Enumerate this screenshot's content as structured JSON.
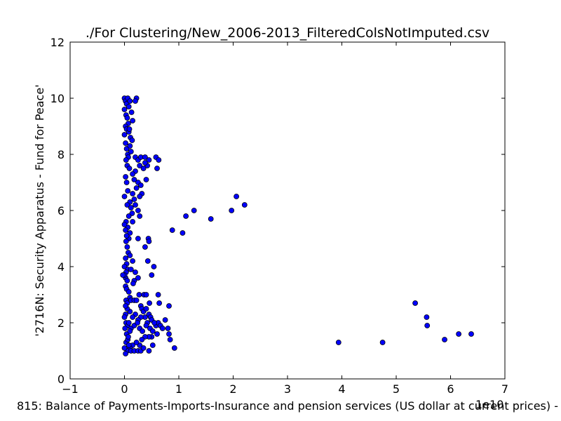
{
  "chart_data": {
    "type": "scatter",
    "title": "./For Clustering/New_2006-2013_FilteredColsNotImputed.csv",
    "xlabel": "815: Balance of Payments-Imports-Insurance and pension services (US dollar at current prices) -",
    "ylabel": "'2716N: Security Apparatus - Fund for Peace'",
    "x_scale_label": "1e10",
    "xlim": [
      -1,
      7
    ],
    "ylim": [
      0,
      12
    ],
    "xticks": [
      "−1",
      "0",
      "1",
      "2",
      "3",
      "4",
      "5",
      "6",
      "7"
    ],
    "yticks": [
      "0",
      "2",
      "4",
      "6",
      "8",
      "10",
      "12"
    ],
    "grid": false,
    "marker_color": "#0000ff",
    "marker_edge_color": "#000000",
    "points": [
      [
        0.0,
        10.0
      ],
      [
        0.02,
        9.9
      ],
      [
        0.04,
        9.8
      ],
      [
        0.06,
        10.0
      ],
      [
        0.08,
        9.7
      ],
      [
        0.1,
        9.9
      ],
      [
        0.13,
        9.5
      ],
      [
        0.15,
        9.2
      ],
      [
        0.22,
        10.0
      ],
      [
        0.2,
        9.9
      ],
      [
        0.0,
        9.6
      ],
      [
        0.03,
        9.4
      ],
      [
        0.05,
        9.3
      ],
      [
        0.07,
        9.1
      ],
      [
        0.02,
        9.0
      ],
      [
        0.04,
        8.9
      ],
      [
        0.08,
        8.8
      ],
      [
        0.11,
        8.6
      ],
      [
        0.14,
        8.5
      ],
      [
        0.09,
        8.9
      ],
      [
        0.0,
        8.7
      ],
      [
        0.02,
        8.4
      ],
      [
        0.04,
        8.2
      ],
      [
        0.06,
        8.0
      ],
      [
        0.1,
        8.3
      ],
      [
        0.12,
        8.1
      ],
      [
        0.07,
        7.9
      ],
      [
        0.03,
        7.8
      ],
      [
        0.05,
        7.6
      ],
      [
        0.09,
        7.5
      ],
      [
        0.2,
        7.9
      ],
      [
        0.25,
        7.8
      ],
      [
        0.3,
        7.9
      ],
      [
        0.38,
        7.9
      ],
      [
        0.45,
        7.8
      ],
      [
        0.58,
        7.9
      ],
      [
        0.63,
        7.8
      ],
      [
        0.6,
        7.5
      ],
      [
        0.42,
        7.6
      ],
      [
        0.38,
        7.7
      ],
      [
        0.35,
        7.5
      ],
      [
        0.28,
        7.6
      ],
      [
        0.2,
        7.4
      ],
      [
        0.15,
        7.3
      ],
      [
        0.18,
        7.1
      ],
      [
        0.25,
        7.0
      ],
      [
        0.3,
        6.9
      ],
      [
        0.22,
        6.8
      ],
      [
        0.15,
        6.6
      ],
      [
        0.32,
        6.6
      ],
      [
        0.28,
        6.5
      ],
      [
        0.18,
        6.4
      ],
      [
        0.1,
        6.3
      ],
      [
        0.05,
        6.2
      ],
      [
        0.12,
        6.1
      ],
      [
        0.2,
        6.2
      ],
      [
        0.25,
        6.0
      ],
      [
        0.14,
        5.9
      ],
      [
        0.08,
        5.8
      ],
      [
        0.28,
        5.8
      ],
      [
        0.4,
        7.1
      ],
      [
        0.02,
        7.2
      ],
      [
        0.04,
        7.0
      ],
      [
        0.06,
        6.7
      ],
      [
        0.0,
        6.5
      ],
      [
        0.03,
        5.6
      ],
      [
        0.06,
        5.4
      ],
      [
        0.1,
        5.2
      ],
      [
        0.15,
        5.6
      ],
      [
        0.08,
        5.0
      ],
      [
        0.0,
        5.5
      ],
      [
        0.02,
        5.3
      ],
      [
        0.04,
        5.1
      ],
      [
        0.03,
        4.9
      ],
      [
        0.05,
        4.7
      ],
      [
        0.07,
        4.5
      ],
      [
        0.1,
        4.4
      ],
      [
        0.02,
        4.3
      ],
      [
        0.04,
        4.1
      ],
      [
        0.0,
        4.0
      ],
      [
        0.06,
        3.9
      ],
      [
        0.12,
        3.9
      ],
      [
        0.15,
        4.2
      ],
      [
        0.2,
        3.8
      ],
      [
        0.18,
        3.5
      ],
      [
        0.16,
        3.4
      ],
      [
        0.25,
        3.6
      ],
      [
        0.03,
        3.8
      ],
      [
        0.02,
        3.6
      ],
      [
        0.05,
        3.5
      ],
      [
        0.0,
        3.7
      ],
      [
        -0.03,
        3.7
      ],
      [
        0.02,
        3.3
      ],
      [
        0.04,
        3.2
      ],
      [
        0.08,
        3.1
      ],
      [
        0.1,
        2.9
      ],
      [
        0.03,
        2.8
      ],
      [
        0.05,
        2.7
      ],
      [
        0.12,
        2.8
      ],
      [
        0.18,
        2.8
      ],
      [
        0.22,
        2.8
      ],
      [
        0.3,
        2.6
      ],
      [
        0.32,
        2.5
      ],
      [
        0.35,
        2.4
      ],
      [
        0.4,
        2.5
      ],
      [
        0.45,
        2.3
      ],
      [
        0.48,
        2.2
      ],
      [
        0.5,
        2.1
      ],
      [
        0.42,
        2.0
      ],
      [
        0.38,
        2.2
      ],
      [
        0.3,
        2.2
      ],
      [
        0.25,
        2.1
      ],
      [
        0.2,
        2.3
      ],
      [
        0.15,
        2.2
      ],
      [
        0.1,
        2.4
      ],
      [
        0.05,
        2.5
      ],
      [
        0.02,
        2.3
      ],
      [
        0.0,
        2.2
      ],
      [
        0.03,
        2.0
      ],
      [
        0.06,
        1.9
      ],
      [
        0.08,
        2.0
      ],
      [
        0.12,
        1.8
      ],
      [
        0.18,
        1.9
      ],
      [
        0.24,
        2.0
      ],
      [
        0.28,
        1.8
      ],
      [
        0.33,
        1.7
      ],
      [
        0.4,
        1.9
      ],
      [
        0.47,
        1.8
      ],
      [
        0.52,
        1.7
      ],
      [
        0.58,
        1.9
      ],
      [
        0.62,
        2.0
      ],
      [
        0.66,
        1.9
      ],
      [
        0.7,
        1.8
      ],
      [
        0.75,
        2.1
      ],
      [
        0.8,
        1.8
      ],
      [
        0.82,
        1.6
      ],
      [
        0.84,
        1.4
      ],
      [
        0.6,
        1.6
      ],
      [
        0.5,
        1.5
      ],
      [
        0.45,
        1.5
      ],
      [
        0.38,
        1.5
      ],
      [
        0.32,
        1.4
      ],
      [
        0.28,
        1.2
      ],
      [
        0.22,
        1.3
      ],
      [
        0.15,
        1.2
      ],
      [
        0.1,
        1.1
      ],
      [
        0.05,
        1.0
      ],
      [
        0.02,
        0.9
      ],
      [
        0.0,
        1.1
      ],
      [
        0.03,
        1.3
      ],
      [
        0.06,
        1.4
      ],
      [
        0.08,
        1.2
      ],
      [
        0.12,
        1.0
      ],
      [
        0.18,
        1.0
      ],
      [
        0.25,
        1.0
      ],
      [
        0.3,
        1.0
      ],
      [
        0.35,
        1.1
      ],
      [
        0.45,
        1.0
      ],
      [
        0.52,
        1.2
      ],
      [
        0.92,
        1.1
      ],
      [
        0.36,
        3.0
      ],
      [
        0.4,
        3.0
      ],
      [
        0.46,
        2.7
      ],
      [
        0.55,
        2.0
      ],
      [
        0.62,
        3.0
      ],
      [
        0.64,
        2.7
      ],
      [
        0.82,
        2.6
      ],
      [
        0.25,
        5.0
      ],
      [
        0.44,
        5.0
      ],
      [
        0.45,
        4.9
      ],
      [
        0.38,
        4.7
      ],
      [
        0.43,
        4.2
      ],
      [
        0.5,
        3.7
      ],
      [
        0.54,
        4.0
      ],
      [
        0.27,
        3.0
      ],
      [
        0.02,
        2.6
      ],
      [
        0.04,
        1.6
      ],
      [
        0.01,
        1.8
      ],
      [
        0.07,
        1.5
      ],
      [
        0.1,
        1.7
      ],
      [
        0.88,
        5.3
      ],
      [
        1.07,
        5.2
      ],
      [
        1.13,
        5.8
      ],
      [
        1.28,
        6.0
      ],
      [
        1.59,
        5.7
      ],
      [
        1.97,
        6.0
      ],
      [
        2.06,
        6.5
      ],
      [
        2.21,
        6.2
      ],
      [
        3.94,
        1.3
      ],
      [
        4.75,
        1.3
      ],
      [
        5.35,
        2.7
      ],
      [
        5.56,
        2.2
      ],
      [
        5.57,
        1.9
      ],
      [
        5.89,
        1.4
      ],
      [
        6.15,
        1.6
      ],
      [
        6.38,
        1.6
      ]
    ]
  }
}
